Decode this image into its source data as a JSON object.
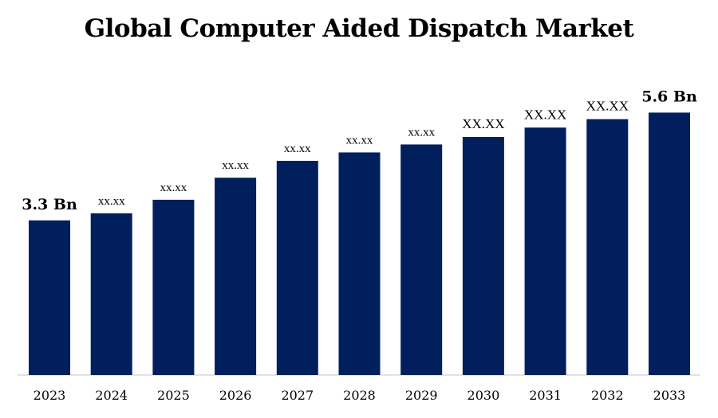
{
  "chart_data": {
    "type": "bar",
    "title": "Global Computer Aided Dispatch Market",
    "xlabel": "",
    "ylabel": "",
    "ylim": [
      0,
      6.1
    ],
    "grid": false,
    "categories": [
      "2023",
      "2024",
      "2025",
      "2026",
      "2027",
      "2028",
      "2029",
      "2030",
      "2031",
      "2032",
      "2033"
    ],
    "values": [
      3.3,
      3.45,
      3.74,
      4.21,
      4.57,
      4.75,
      4.92,
      5.08,
      5.28,
      5.46,
      5.6
    ],
    "data_labels": [
      "3.3 Bn",
      "xx.xx",
      "xx.xx",
      "xx.xx",
      "xx.xx",
      "xx.xx",
      "xx.xx",
      "XX.XX",
      "XX.XX",
      "XX.XX",
      "5.6 Bn"
    ],
    "colors": {
      "bar": "#001f5c",
      "axis": "#d9d9d9",
      "text": "#000000"
    }
  }
}
